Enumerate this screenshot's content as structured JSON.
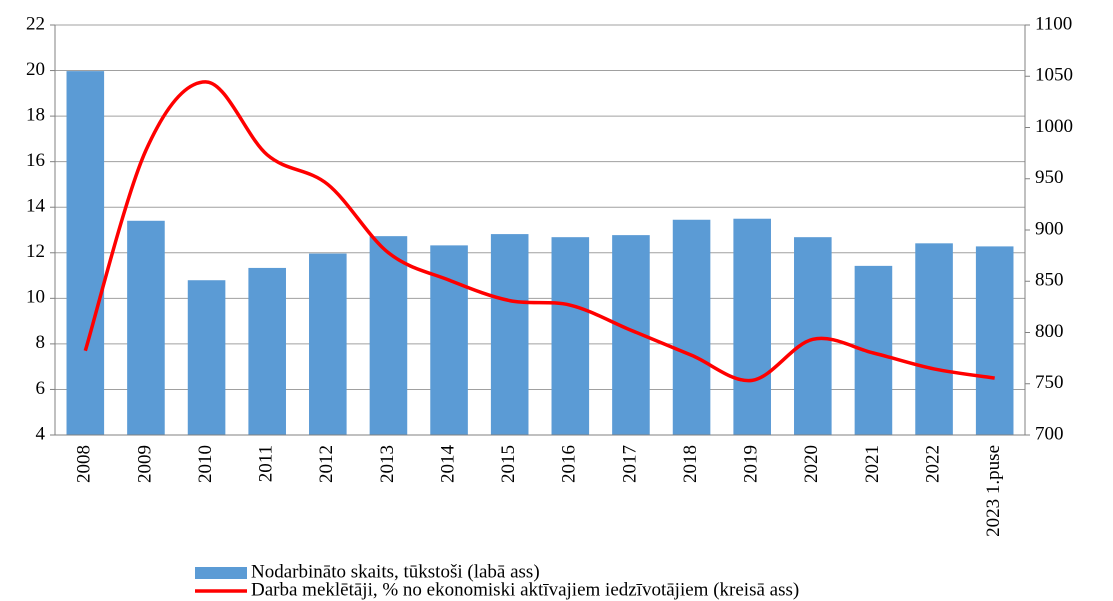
{
  "chart_data": {
    "type": "bar_line",
    "categories": [
      "2008",
      "2009",
      "2010",
      "2011",
      "2012",
      "2013",
      "2014",
      "2015",
      "2016",
      "2017",
      "2018",
      "2019",
      "2020",
      "2021",
      "2022",
      "2023 1.puse"
    ],
    "series": [
      {
        "name": "Nodarbināto skaits, tūkstoši (labā ass)",
        "type": "bar",
        "axis": "y2",
        "color": "#5b9bd5",
        "values": [
          1055,
          909,
          851,
          863,
          877,
          894,
          885,
          896,
          893,
          895,
          910,
          911,
          893,
          865,
          887,
          884
        ]
      },
      {
        "name": "Darba meklētāji, % no ekonomiski aktīvajiem iedzīvotājiem (kreisā ass)",
        "type": "line",
        "axis": "y",
        "color": "#ff0000",
        "values": [
          7.7,
          16.5,
          19.5,
          16.3,
          15.0,
          12.0,
          10.8,
          9.9,
          9.7,
          8.6,
          7.5,
          6.4,
          8.2,
          7.6,
          6.9,
          6.5
        ]
      }
    ],
    "ylim": [
      4,
      22
    ],
    "yticks": [
      4,
      6,
      8,
      10,
      12,
      14,
      16,
      18,
      20,
      22
    ],
    "y2lim": [
      700,
      1100
    ],
    "y2ticks": [
      700,
      750,
      800,
      850,
      900,
      950,
      1000,
      1050,
      1100
    ],
    "grid": true,
    "legend": "bottom"
  }
}
